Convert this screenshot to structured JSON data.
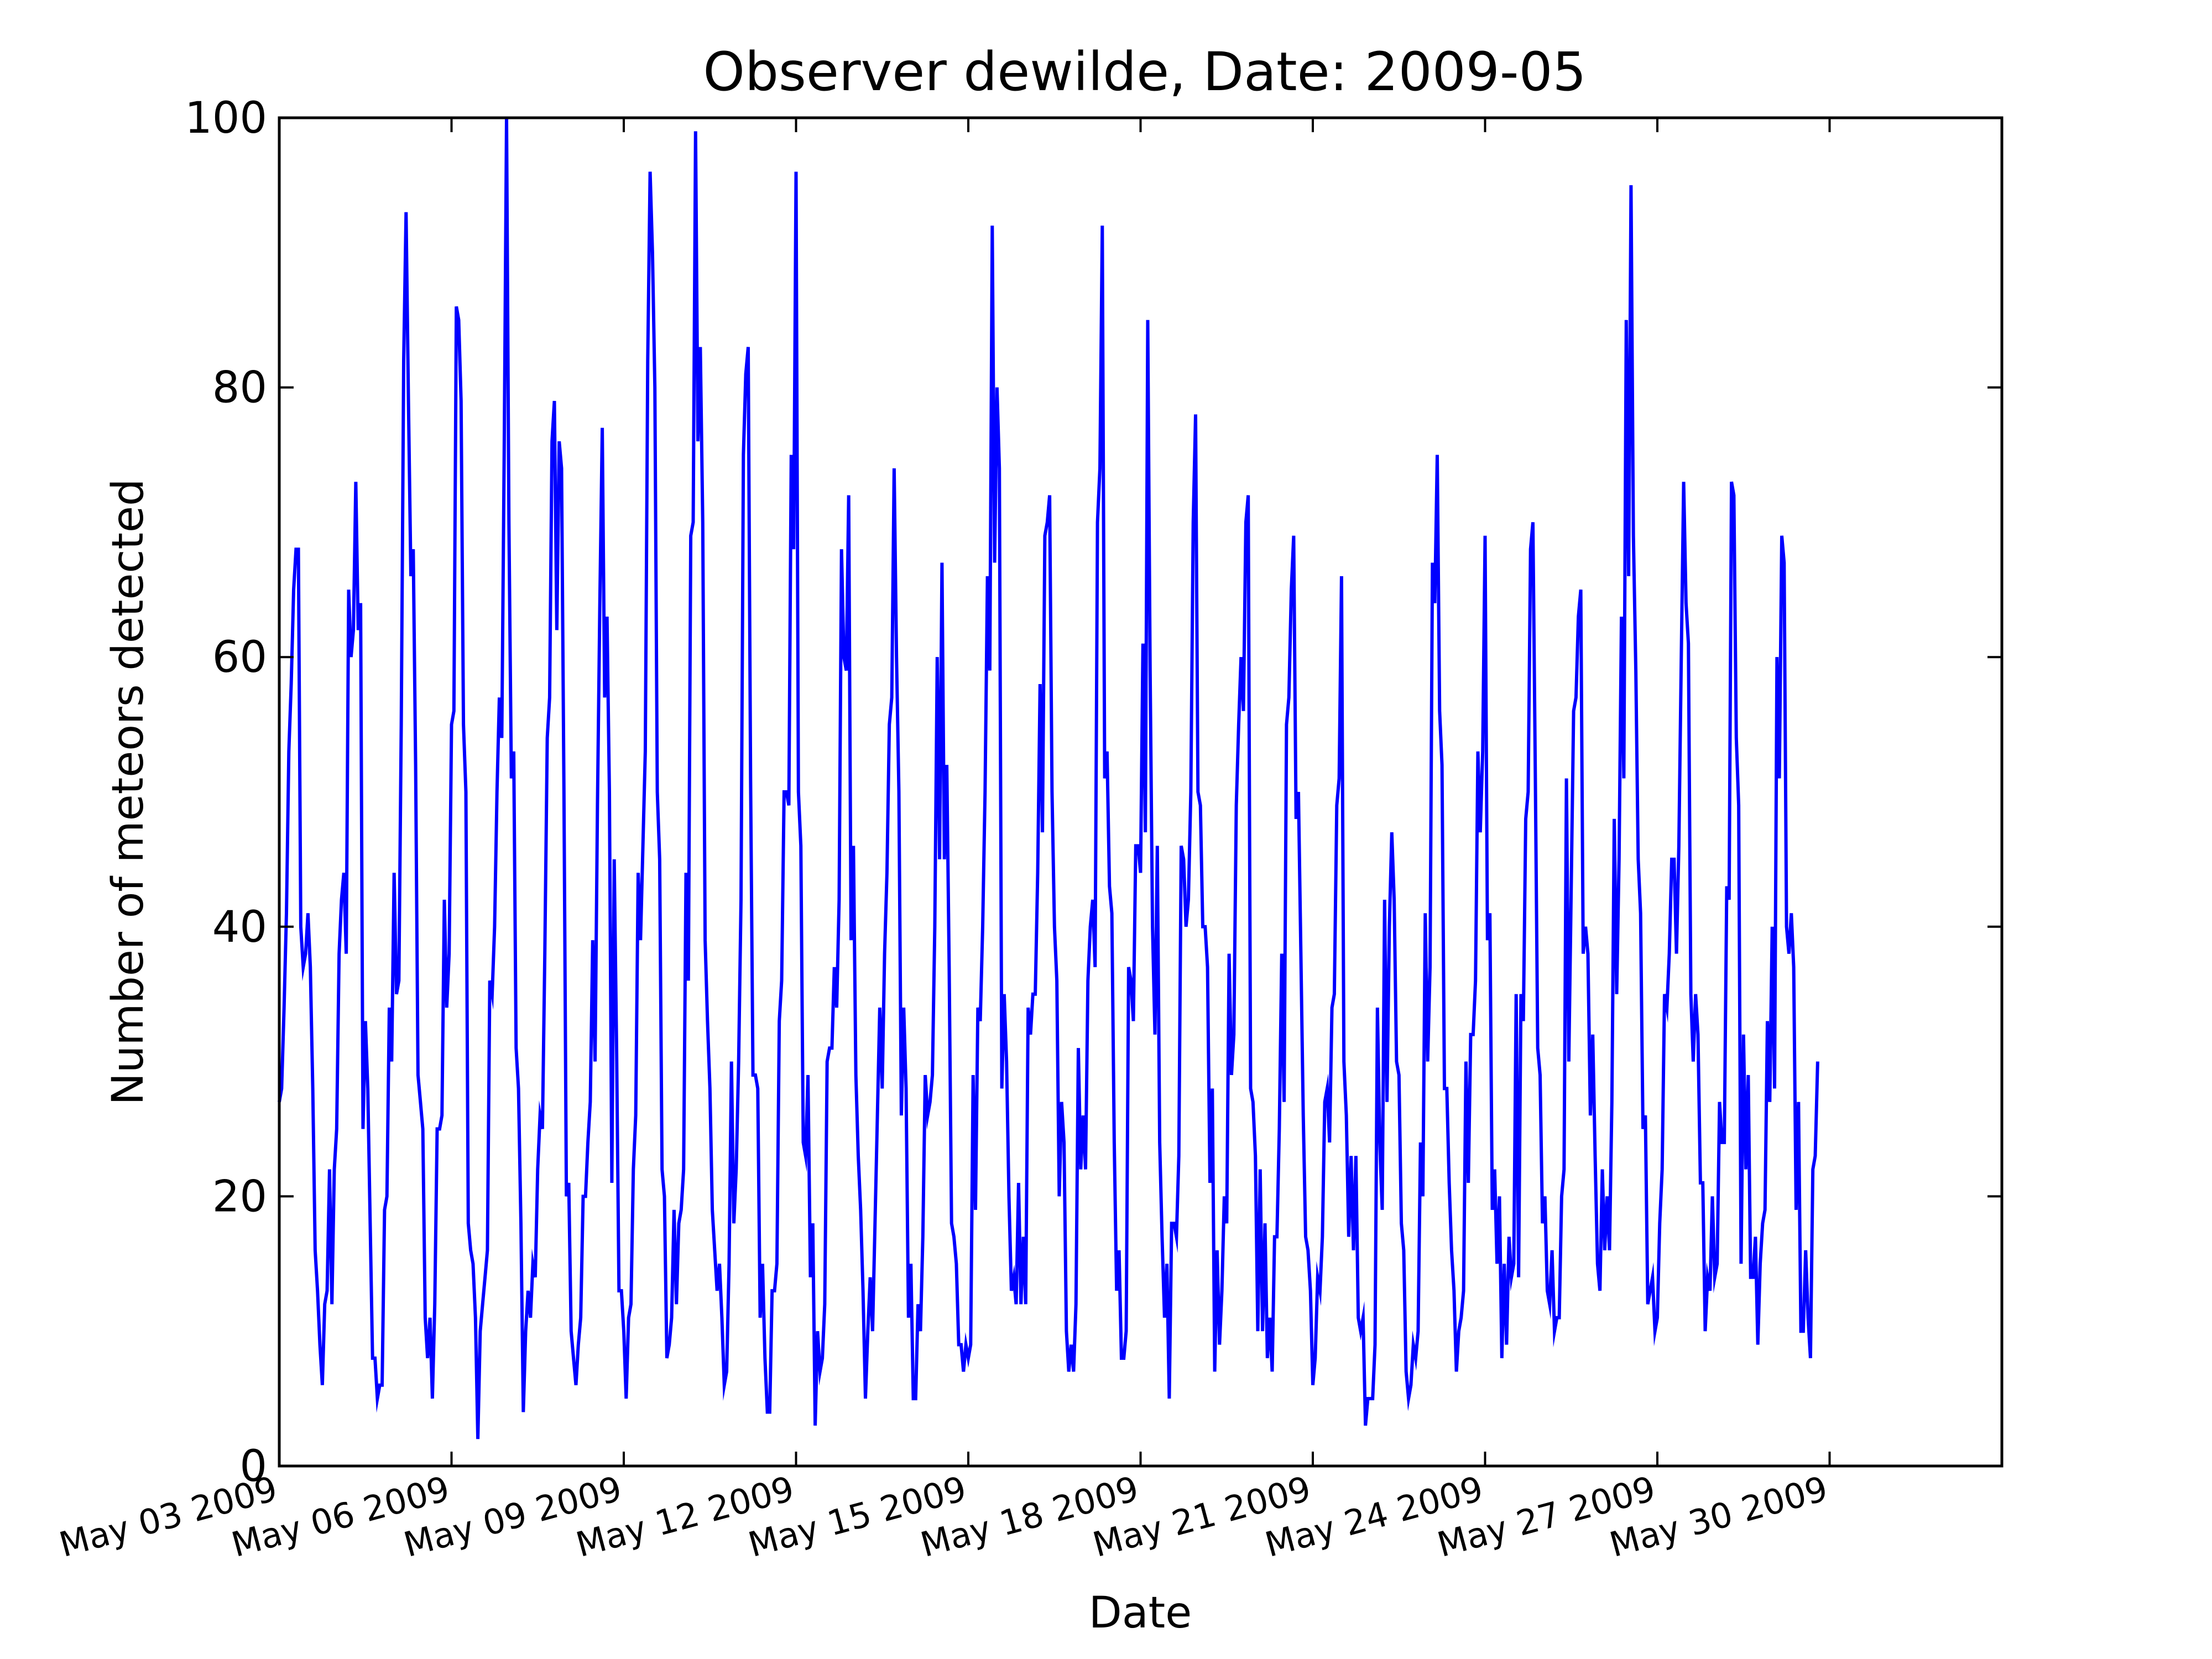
{
  "chart_data": {
    "type": "line",
    "title": "Observer dewilde, Date: 2009-05",
    "xlabel": "Date",
    "ylabel": "Number of meteors detected",
    "ylim": [
      0,
      100
    ],
    "xlim": [
      "2009-05-03",
      "2009-06-02"
    ],
    "ytick_labels": [
      "0",
      "20",
      "40",
      "60",
      "80",
      "100"
    ],
    "ytick_values": [
      0,
      20,
      40,
      60,
      80,
      100
    ],
    "xtick_labels": [
      "May 03 2009",
      "May 06 2009",
      "May 09 2009",
      "May 12 2009",
      "May 15 2009",
      "May 18 2009",
      "May 21 2009",
      "May 24 2009",
      "May 27 2009",
      "May 30 2009"
    ],
    "xtick_dates": [
      "2009-05-03",
      "2009-05-06",
      "2009-05-09",
      "2009-05-12",
      "2009-05-15",
      "2009-05-18",
      "2009-05-21",
      "2009-05-24",
      "2009-05-27",
      "2009-05-30"
    ],
    "grid": false,
    "line_color": "#0000ff",
    "series": [
      {
        "x_start": "2009-05-03 00:00",
        "interval_hours": 1,
        "values": [
          27,
          28,
          34,
          41,
          53,
          58,
          65,
          68,
          68,
          40,
          37,
          38,
          41,
          37,
          28,
          16,
          13,
          9,
          6,
          12,
          13,
          22,
          12,
          22,
          25,
          38,
          42,
          44,
          38,
          65,
          60,
          62,
          73,
          62,
          64,
          25,
          33,
          28,
          18,
          8,
          8,
          5,
          6,
          6,
          19,
          20,
          34,
          30,
          44,
          35,
          36,
          55,
          82,
          93,
          79,
          66,
          68,
          52,
          29,
          27,
          25,
          11,
          8,
          11,
          5,
          12,
          25,
          25,
          26,
          42,
          34,
          38,
          55,
          56,
          86,
          85,
          79,
          55,
          50,
          18,
          16,
          15,
          11,
          2,
          10,
          12,
          14,
          16,
          36,
          35,
          40,
          50,
          57,
          54,
          75,
          100,
          70,
          51,
          53,
          31,
          28,
          18,
          4,
          10,
          13,
          11,
          15,
          14,
          22,
          26,
          25,
          38,
          54,
          57,
          76,
          79,
          62,
          76,
          74,
          50,
          20,
          21,
          10,
          8,
          6,
          9,
          11,
          20,
          20,
          24,
          27,
          39,
          30,
          49,
          64,
          77,
          57,
          63,
          50,
          21,
          45,
          31,
          13,
          13,
          10,
          5,
          11,
          12,
          22,
          26,
          44,
          39,
          46,
          53,
          82,
          96,
          90,
          80,
          50,
          45,
          22,
          20,
          8,
          9,
          11,
          19,
          12,
          18,
          19,
          22,
          44,
          36,
          69,
          70,
          99,
          76,
          83,
          70,
          39,
          33,
          28,
          19,
          16,
          13,
          15,
          11,
          6,
          7,
          15,
          30,
          18,
          22,
          30,
          42,
          75,
          81,
          83,
          51,
          29,
          29,
          28,
          11,
          15,
          8,
          4,
          4,
          13,
          13,
          15,
          33,
          36,
          50,
          50,
          49,
          75,
          68,
          96,
          50,
          46,
          24,
          23,
          29,
          14,
          18,
          3,
          10,
          7,
          8,
          12,
          30,
          31,
          31,
          37,
          34,
          42,
          68,
          60,
          59,
          72,
          39,
          46,
          29,
          23,
          19,
          13,
          5,
          10,
          14,
          10,
          18,
          26,
          34,
          28,
          38,
          44,
          55,
          57,
          74,
          60,
          50,
          26,
          34,
          28,
          11,
          15,
          5,
          5,
          12,
          10,
          17,
          29,
          26,
          27,
          29,
          40,
          60,
          45,
          67,
          45,
          52,
          37,
          18,
          17,
          15,
          9,
          9,
          7,
          9,
          8,
          9,
          29,
          19,
          34,
          33,
          40,
          50,
          66,
          59,
          92,
          67,
          80,
          74,
          28,
          35,
          30,
          20,
          13,
          14,
          12,
          21,
          12,
          17,
          12,
          34,
          32,
          35,
          35,
          44,
          58,
          47,
          69,
          70,
          72,
          50,
          40,
          36,
          20,
          27,
          24,
          10,
          7,
          9,
          7,
          12,
          31,
          22,
          26,
          22,
          36,
          40,
          42,
          37,
          70,
          74,
          92,
          51,
          53,
          43,
          41,
          24,
          13,
          16,
          8,
          8,
          10,
          37,
          36,
          33,
          46,
          46,
          44,
          61,
          47,
          85,
          59,
          40,
          32,
          46,
          24,
          17,
          11,
          15,
          5,
          18,
          18,
          17,
          23,
          46,
          45,
          40,
          42,
          50,
          70,
          78,
          50,
          49,
          40,
          40,
          37,
          21,
          28,
          7,
          16,
          9,
          13,
          20,
          18,
          38,
          29,
          32,
          49,
          55,
          60,
          56,
          70,
          72,
          28,
          27,
          23,
          10,
          22,
          10,
          18,
          8,
          11,
          7,
          17,
          17,
          25,
          38,
          27,
          55,
          57,
          65,
          69,
          48,
          50,
          38,
          26,
          17,
          16,
          13,
          6,
          8,
          14,
          13,
          17,
          27,
          28,
          24,
          34,
          35,
          49,
          51,
          66,
          30,
          26,
          17,
          23,
          16,
          23,
          11,
          10,
          11,
          3,
          5,
          5,
          5,
          9,
          34,
          24,
          19,
          42,
          27,
          40,
          47,
          42,
          30,
          29,
          18,
          16,
          7,
          5,
          6,
          9,
          8,
          10,
          24,
          20,
          41,
          30,
          37,
          67,
          64,
          75,
          56,
          52,
          28,
          28,
          21,
          16,
          13,
          7,
          10,
          11,
          13,
          30,
          21,
          32,
          32,
          36,
          53,
          47,
          53,
          69,
          39,
          41,
          19,
          22,
          15,
          20,
          8,
          15,
          9,
          17,
          14,
          15,
          35,
          14,
          35,
          33,
          48,
          50,
          68,
          70,
          51,
          31,
          29,
          18,
          20,
          13,
          12,
          16,
          10,
          11,
          11,
          20,
          22,
          51,
          30,
          43,
          56,
          57,
          63,
          65,
          38,
          40,
          38,
          26,
          32,
          23,
          15,
          13,
          22,
          16,
          20,
          16,
          27,
          48,
          35,
          45,
          63,
          51,
          85,
          66,
          95,
          69,
          59,
          45,
          41,
          25,
          26,
          12,
          13,
          14,
          10,
          11,
          18,
          22,
          35,
          34,
          38,
          45,
          45,
          38,
          46,
          60,
          73,
          64,
          61,
          35,
          30,
          35,
          32,
          21,
          21,
          10,
          14,
          13,
          20,
          14,
          15,
          27,
          24,
          24,
          43,
          42,
          73,
          72,
          54,
          49,
          15,
          32,
          22,
          29,
          14,
          14,
          17,
          9,
          15,
          18,
          19,
          33,
          27,
          40,
          28,
          60,
          51,
          69,
          67,
          40,
          38,
          41,
          37,
          19,
          27,
          10,
          10,
          16,
          11,
          8,
          22,
          23,
          30
        ]
      }
    ]
  }
}
